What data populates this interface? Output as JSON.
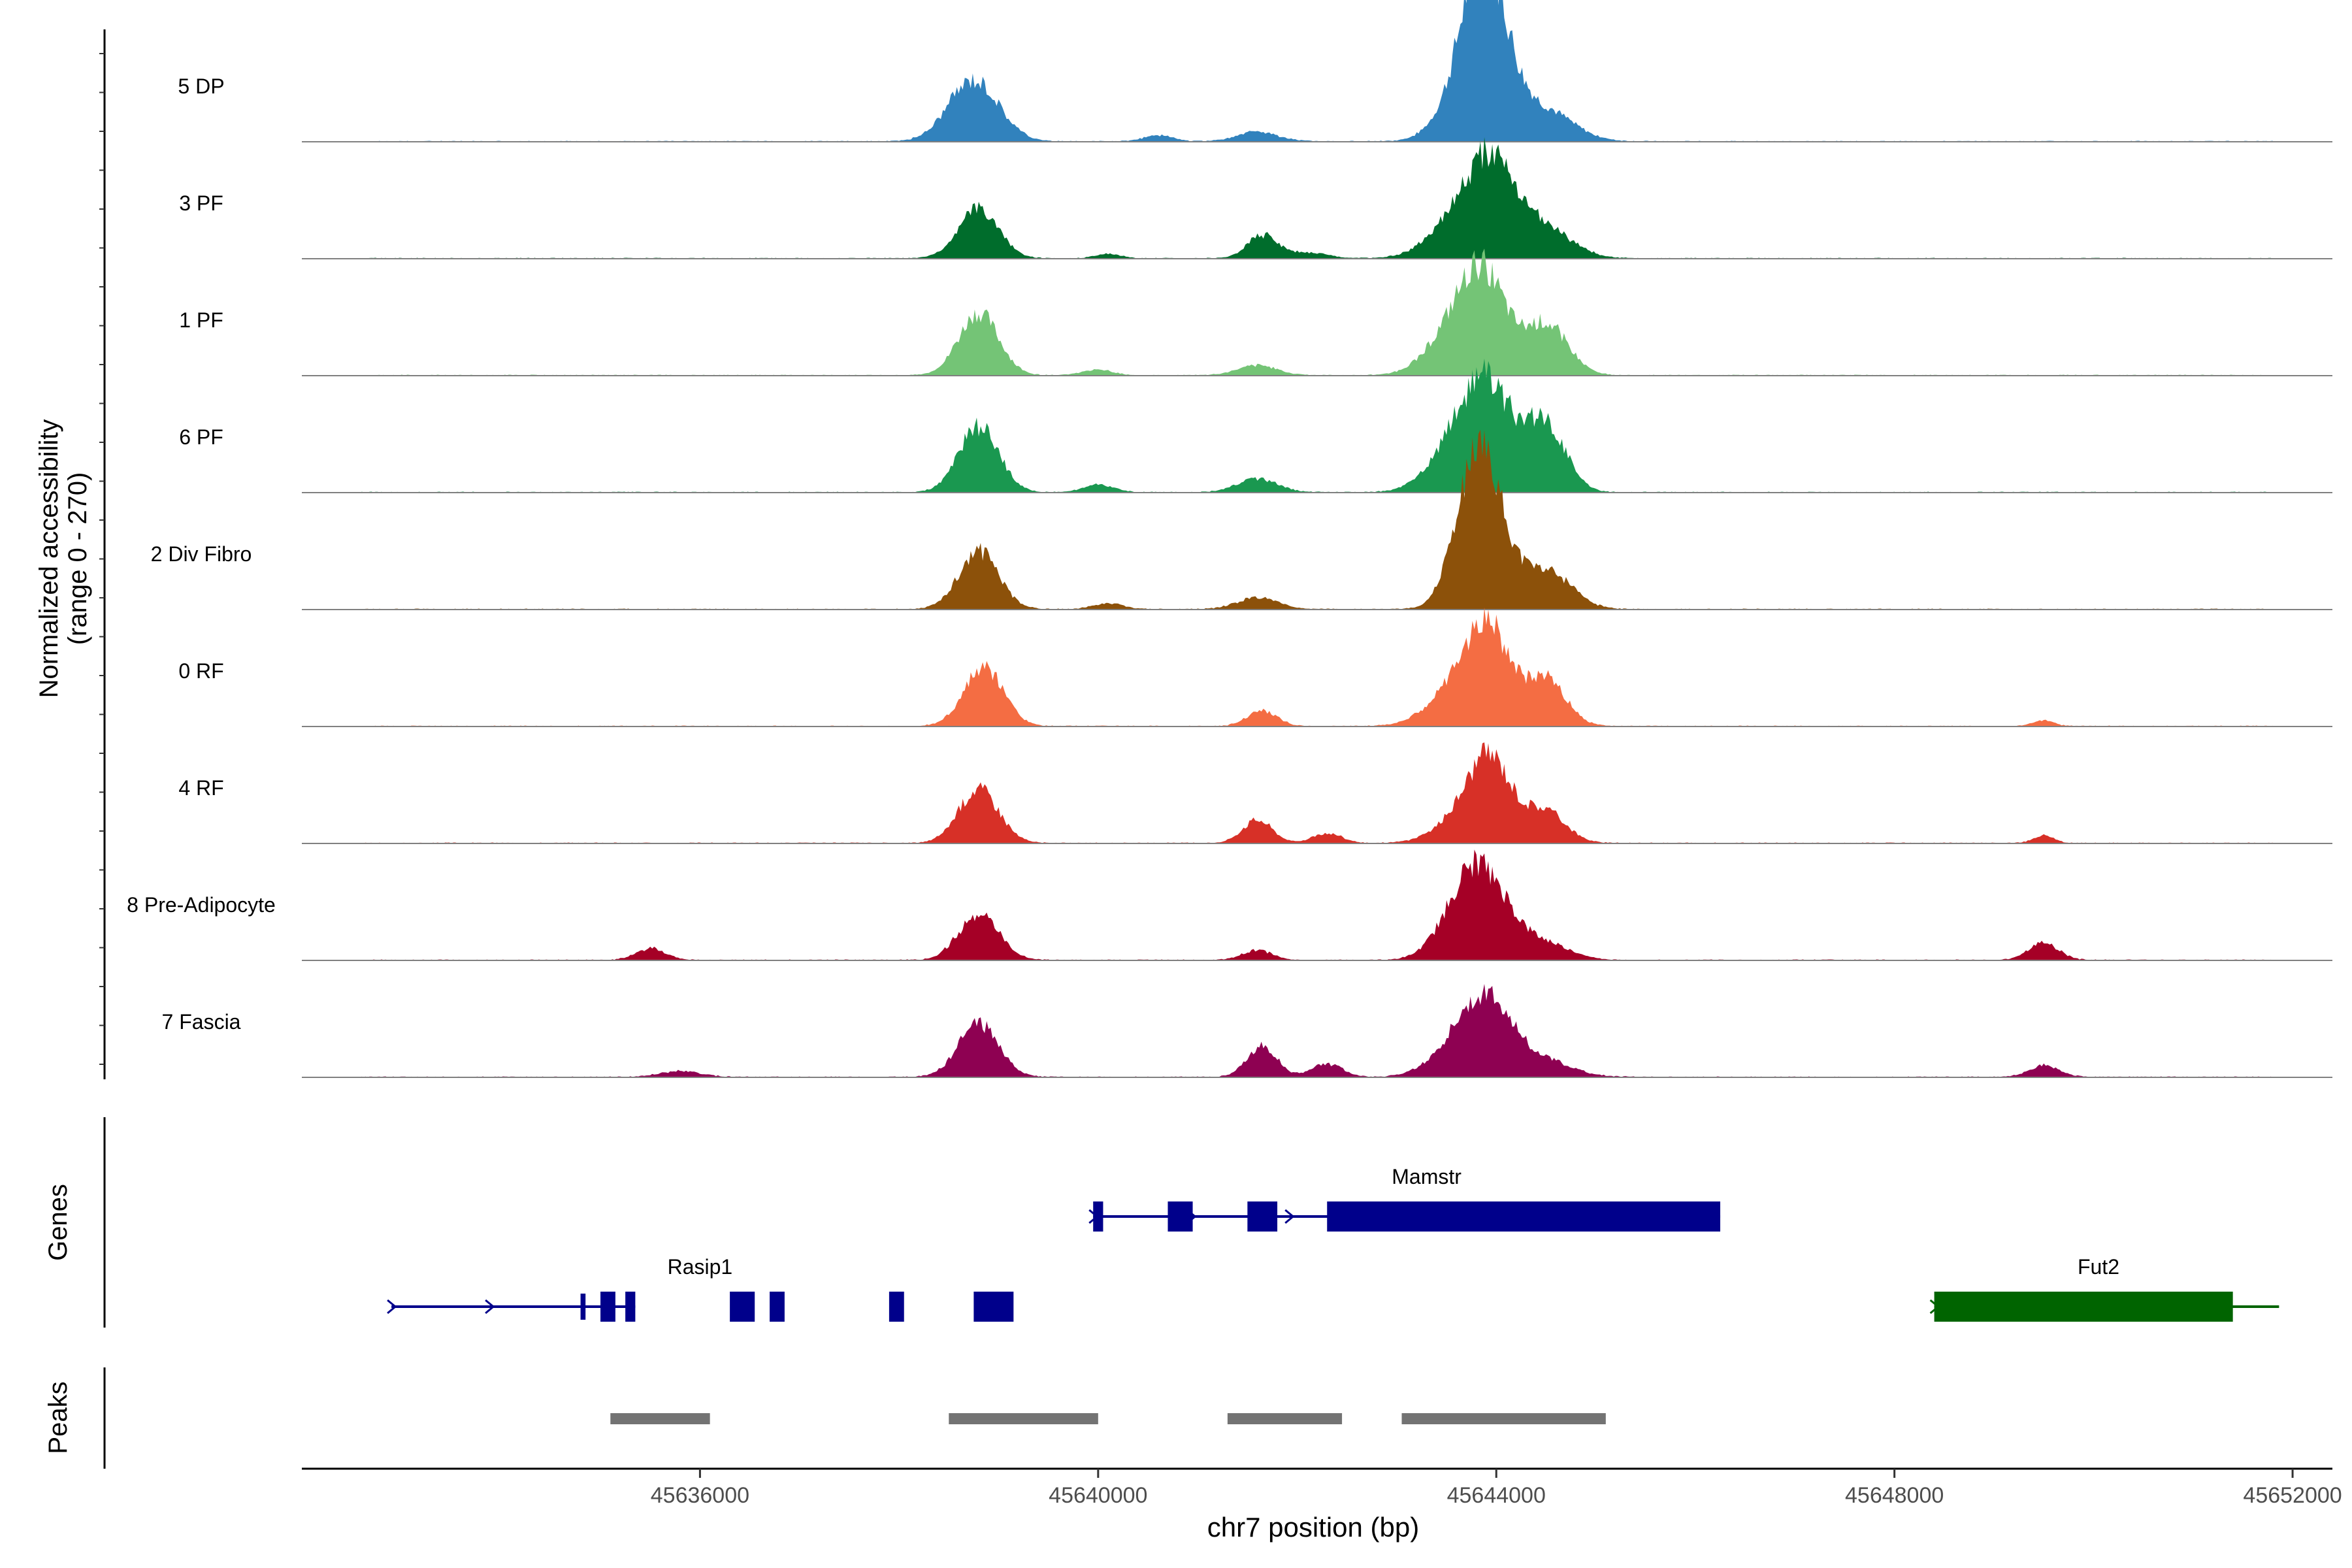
{
  "chart_data": {
    "type": "area",
    "title": "",
    "xlabel": "chr7 position (bp)",
    "ylabel": "Normalized accessibility",
    "ylabel_range": "(range 0 - 270)",
    "ylim": [
      0,
      270
    ],
    "xlim": [
      45632000,
      45652400
    ],
    "x_ticks": [
      45636000,
      45640000,
      45644000,
      45648000,
      45652000
    ],
    "x_tick_labels": [
      "45636000",
      "45640000",
      "45644000",
      "45648000",
      "45652000"
    ],
    "tracks": [
      {
        "name": "5 DP",
        "color": "#3182bd",
        "peaks": [
          [
            45638750,
            250,
            160
          ],
          [
            45640600,
            150,
            15
          ],
          [
            45641600,
            200,
            25
          ],
          [
            45643700,
            250,
            140
          ],
          [
            45643830,
            180,
            230
          ],
          [
            45644000,
            200,
            190
          ],
          [
            45644450,
            300,
            85
          ]
        ]
      },
      {
        "name": "3 PF",
        "color": "#006d2c",
        "peaks": [
          [
            45638800,
            200,
            130
          ],
          [
            45640100,
            120,
            12
          ],
          [
            45641650,
            150,
            60
          ],
          [
            45642100,
            200,
            15
          ],
          [
            45643700,
            300,
            130
          ],
          [
            45643950,
            200,
            150
          ],
          [
            45644400,
            300,
            95
          ]
        ]
      },
      {
        "name": "1 PF",
        "color": "#74c476",
        "peaks": [
          [
            45638800,
            200,
            160
          ],
          [
            45640000,
            150,
            15
          ],
          [
            45641600,
            200,
            25
          ],
          [
            45643700,
            300,
            170
          ],
          [
            45643900,
            200,
            140
          ],
          [
            45644500,
            220,
            130
          ]
        ]
      },
      {
        "name": "6 PF",
        "color": "#1a9850",
        "peaks": [
          [
            45638800,
            200,
            170
          ],
          [
            45640000,
            150,
            20
          ],
          [
            45641600,
            200,
            35
          ],
          [
            45643700,
            300,
            150
          ],
          [
            45643950,
            250,
            180
          ],
          [
            45644500,
            200,
            170
          ]
        ]
      },
      {
        "name": "2 Div Fibro",
        "color": "#8c510a",
        "peaks": [
          [
            45638800,
            200,
            150
          ],
          [
            45640100,
            150,
            15
          ],
          [
            45641600,
            200,
            30
          ],
          [
            45643750,
            200,
            260
          ],
          [
            45643950,
            200,
            200
          ],
          [
            45644500,
            250,
            100
          ]
        ]
      },
      {
        "name": "0 RF",
        "color": "#f46d43",
        "peaks": [
          [
            45638850,
            200,
            150
          ],
          [
            45641650,
            150,
            40
          ],
          [
            45643700,
            300,
            130
          ],
          [
            45643950,
            200,
            170
          ],
          [
            45644500,
            200,
            120
          ],
          [
            45649500,
            100,
            15
          ]
        ]
      },
      {
        "name": "4 RF",
        "color": "#d73027",
        "peaks": [
          [
            45638800,
            200,
            140
          ],
          [
            45641600,
            150,
            60
          ],
          [
            45642300,
            150,
            25
          ],
          [
            45643800,
            300,
            100
          ],
          [
            45643950,
            200,
            140
          ],
          [
            45644500,
            200,
            80
          ],
          [
            45649500,
            100,
            20
          ]
        ]
      },
      {
        "name": "8 Pre-Adipocyte",
        "color": "#a50026",
        "peaks": [
          [
            45638800,
            200,
            120
          ],
          [
            45635500,
            150,
            30
          ],
          [
            45641600,
            150,
            25
          ],
          [
            45643700,
            250,
            150
          ],
          [
            45643950,
            250,
            130
          ],
          [
            45644500,
            250,
            40
          ],
          [
            45649500,
            150,
            45
          ]
        ]
      },
      {
        "name": "7 Fascia",
        "color": "#8e0152",
        "peaks": [
          [
            45638800,
            200,
            140
          ],
          [
            45635800,
            200,
            15
          ],
          [
            45641650,
            150,
            80
          ],
          [
            45642300,
            150,
            35
          ],
          [
            45643750,
            300,
            120
          ],
          [
            45643950,
            250,
            100
          ],
          [
            45644450,
            300,
            40
          ],
          [
            45649500,
            150,
            30
          ]
        ]
      }
    ],
    "genes_title": "Genes",
    "genes": [
      {
        "name": "Mamstr",
        "color": "#00008b",
        "start": 45639950,
        "end": 45646250,
        "strand": "+",
        "exons": [
          [
            45639950,
            45640050
          ],
          [
            45640700,
            45640950
          ],
          [
            45641500,
            45641800
          ],
          [
            45642300,
            45646250
          ]
        ]
      },
      {
        "name": "Rasip1",
        "color": "#00008b",
        "start": 45632900,
        "end": 45635350,
        "strand": "+",
        "exons": [
          [
            45634800,
            45634850
          ],
          [
            45635000,
            45635150
          ],
          [
            45635250,
            45635350
          ],
          [
            45636300,
            45636550
          ],
          [
            45636700,
            45636850
          ],
          [
            45637900,
            45638050
          ],
          [
            45638750,
            45639150
          ]
        ]
      },
      {
        "name": "Fut2",
        "color": "#006400",
        "start": 45648400,
        "end": 45651700,
        "strand": "+",
        "exons": [
          [
            45648400,
            45651400
          ]
        ]
      }
    ],
    "peaks_title": "Peaks",
    "peak_regions": [
      [
        45635100,
        45636100
      ],
      [
        45638500,
        45640000
      ],
      [
        45641300,
        45642450
      ],
      [
        45643050,
        45645100
      ]
    ]
  }
}
